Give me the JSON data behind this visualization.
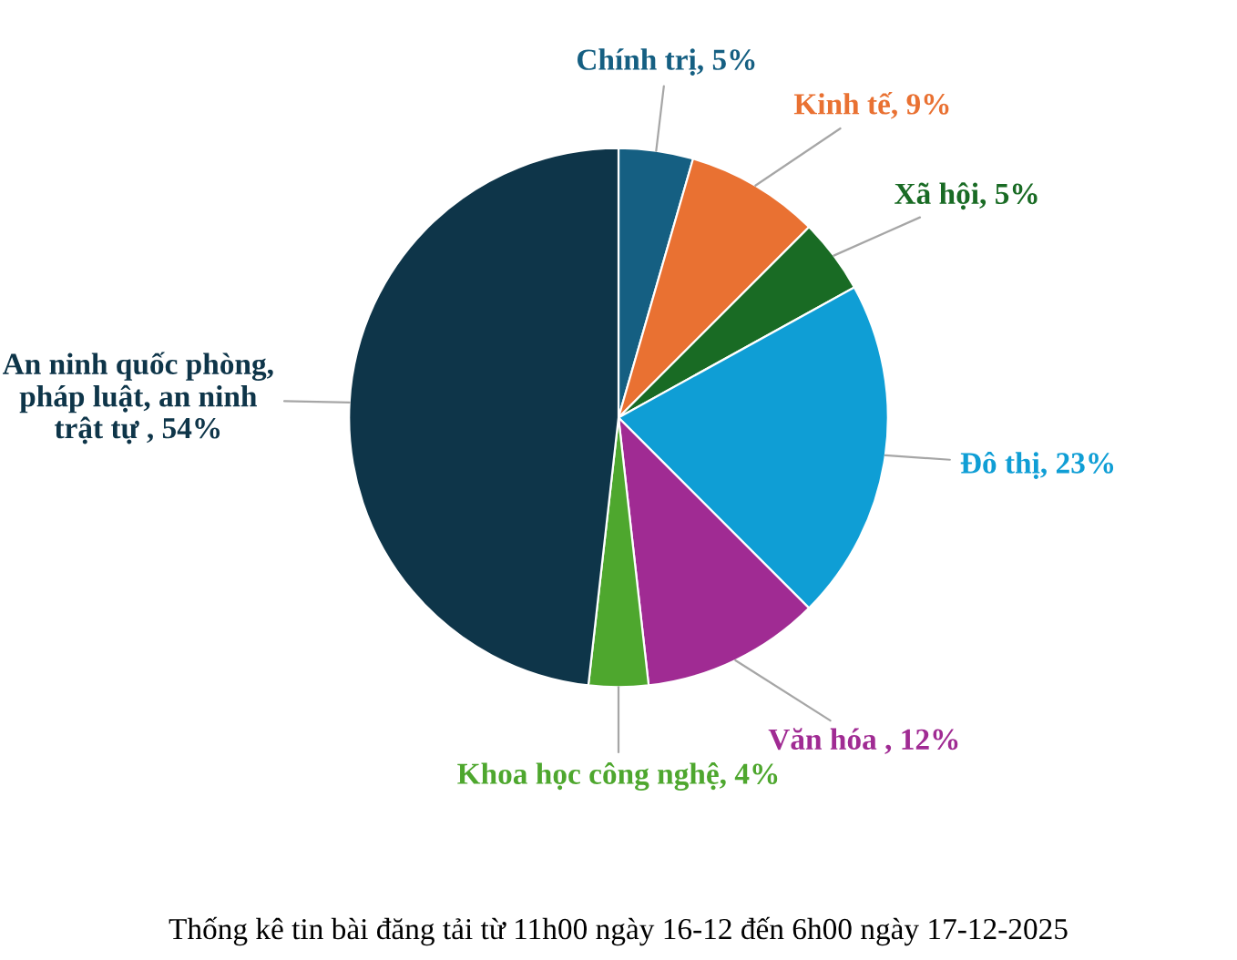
{
  "chart_data": {
    "type": "pie",
    "title": "Thống kê tin bài đăng tải từ 11h00 ngày 16-12 đến 6h00 ngày 17-12-2025",
    "categories": [
      "Chính trị",
      "Kinh tế",
      "Xã hội",
      "Đô thị",
      "Văn hóa ",
      "Khoa học công nghệ",
      "An ninh quốc phòng, pháp luật, an ninh trật tự "
    ],
    "values": [
      5,
      9,
      5,
      23,
      12,
      4,
      54
    ],
    "value_labels": [
      "5%",
      "9%",
      "5%",
      "23%",
      "12%",
      "4%",
      "54%"
    ],
    "colors": [
      "#155f82",
      "#e97132",
      "#196b24",
      "#0f9ed5",
      "#a02b93",
      "#4ea72e",
      "#0e3549"
    ]
  }
}
